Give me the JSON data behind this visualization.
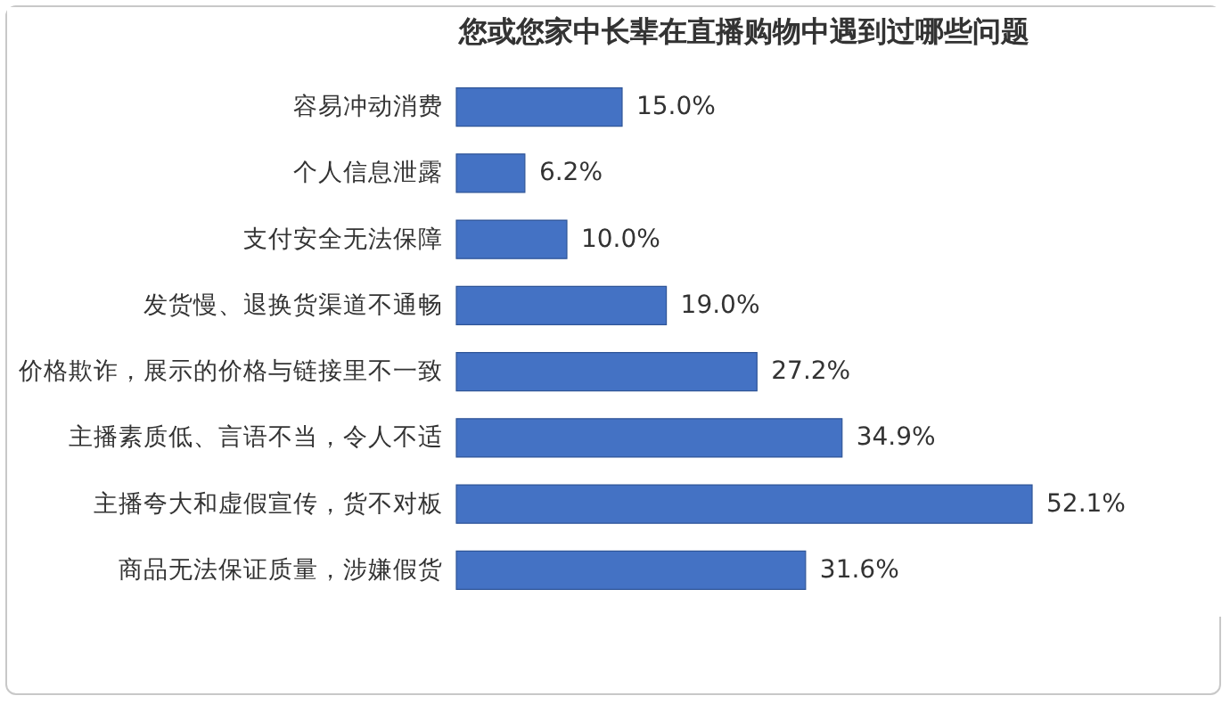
{
  "chart_data": {
    "type": "bar",
    "orientation": "horizontal",
    "title": "您或您家中长辈在直播购物中遇到过哪些问题",
    "categories": [
      "容易冲动消费",
      "个人信息泄露",
      "支付安全无法保障",
      "发货慢、退换货渠道不通畅",
      "价格欺诈，展示的价格与链接里不一致",
      "主播素质低、言语不当，令人不适",
      "主播夸大和虚假宣传，货不对板",
      "商品无法保证质量，涉嫌假货"
    ],
    "values": [
      15.0,
      6.2,
      10.0,
      19.0,
      27.2,
      34.9,
      52.1,
      31.6
    ],
    "value_labels": [
      "15.0%",
      "6.2%",
      "10.0%",
      "19.0%",
      "27.2%",
      "34.9%",
      "52.1%",
      "31.6%"
    ],
    "color": "#4472c4",
    "tick_labels": "y"
  }
}
